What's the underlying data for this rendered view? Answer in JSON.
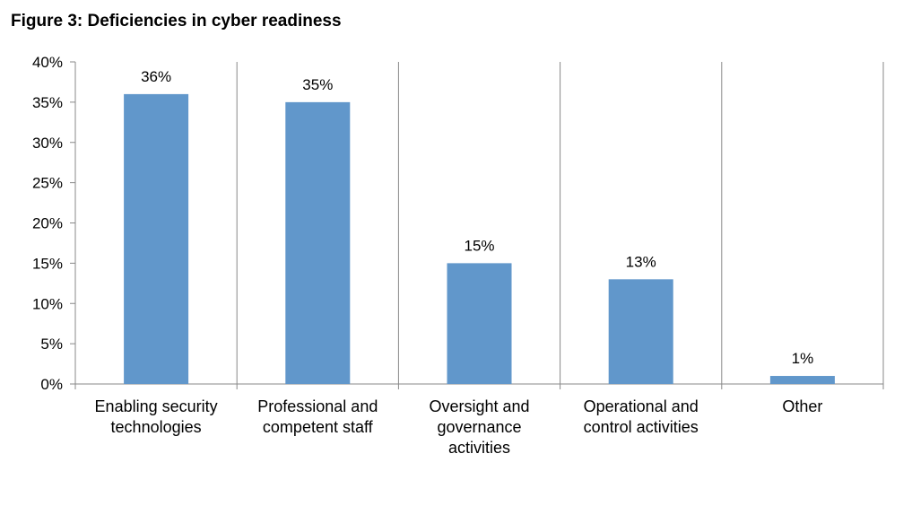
{
  "chart_data": {
    "type": "bar",
    "title": "Figure 3: Deficiencies in cyber readiness",
    "categories": [
      [
        "Enabling security",
        "technologies"
      ],
      [
        "Professional and",
        "competent staff"
      ],
      [
        "Oversight and",
        "governance",
        "activities"
      ],
      [
        "Operational and",
        "control activities"
      ],
      [
        "Other"
      ]
    ],
    "values": [
      36,
      35,
      15,
      13,
      1
    ],
    "data_labels": [
      "36%",
      "35%",
      "15%",
      "13%",
      "1%"
    ],
    "xlabel": "",
    "ylabel": "",
    "ylim": [
      0,
      40
    ],
    "yticks": [
      0,
      5,
      10,
      15,
      20,
      25,
      30,
      35,
      40
    ],
    "ytick_labels": [
      "0%",
      "5%",
      "10%",
      "15%",
      "20%",
      "25%",
      "30%",
      "35%",
      "40%"
    ],
    "grid": "vertical category separators",
    "legend": "none",
    "colors": {
      "bar": "#6197CB",
      "axis": "#888888"
    }
  }
}
